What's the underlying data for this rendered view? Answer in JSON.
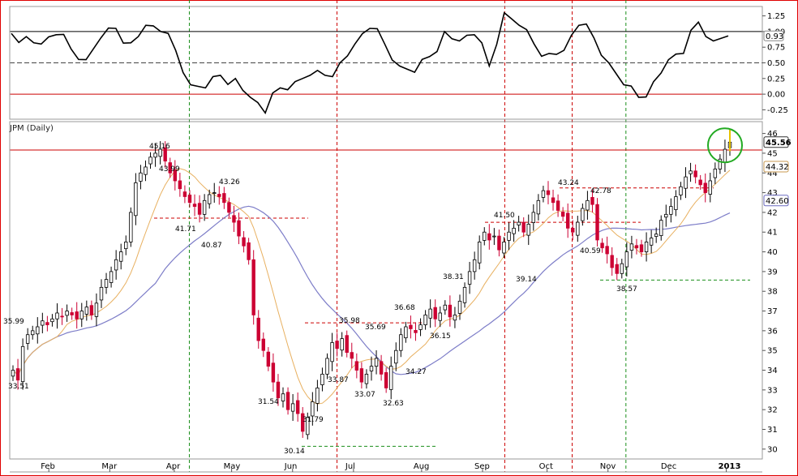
{
  "chart_data": [
    {
      "type": "line",
      "panel": "indicator",
      "ylim": [
        -0.4,
        1.4
      ],
      "yticks": [
        "1.25",
        "1.00",
        "0.75",
        "0.50",
        "0.25",
        "0.00",
        "-0.25"
      ],
      "reference_lines": {
        "solid_black": 1.0,
        "dashed": 0.5,
        "solid_red": 0.0
      },
      "last_value_label": "0.93",
      "x": [
        "Jan",
        "Jan",
        "Jan",
        "Feb",
        "Feb",
        "Feb",
        "Feb",
        "Mar",
        "Mar",
        "Mar",
        "Mar",
        "Apr",
        "Apr",
        "Apr",
        "Apr",
        "May",
        "May",
        "May",
        "May",
        "Jun",
        "Jun",
        "Jun",
        "Jun",
        "Jul",
        "Jul",
        "Jul",
        "Jul",
        "Aug",
        "Aug",
        "Aug",
        "Aug",
        "Sep",
        "Sep",
        "Sep",
        "Sep",
        "Oct",
        "Oct",
        "Oct",
        "Oct",
        "Nov",
        "Nov",
        "Nov",
        "Nov",
        "Dec",
        "Dec",
        "Dec",
        "Dec",
        "Jan",
        "Jan"
      ],
      "values": [
        0.97,
        0.92,
        0.8,
        0.95,
        0.72,
        0.55,
        0.9,
        1.05,
        0.82,
        1.1,
        1.0,
        0.7,
        0.15,
        0.1,
        0.3,
        0.25,
        -0.05,
        -0.3,
        0.1,
        0.2,
        0.3,
        0.3,
        0.5,
        0.8,
        1.05,
        0.8,
        0.45,
        0.35,
        0.6,
        1.0,
        0.85,
        0.95,
        0.45,
        1.3,
        1.1,
        0.8,
        0.65,
        0.7,
        1.1,
        0.9,
        0.5,
        0.15,
        -0.05,
        0.2,
        0.55,
        0.65,
        1.15,
        0.85,
        0.93
      ]
    },
    {
      "type": "candlestick",
      "panel": "price",
      "title": "JPM (Daily)",
      "ylim": [
        29.5,
        46.6
      ],
      "yticks": [
        30,
        31,
        32,
        33,
        34,
        35,
        36,
        37,
        38,
        39,
        40,
        41,
        42,
        43,
        44,
        45,
        46
      ],
      "x_tick_labels": [
        "Feb",
        "Mar",
        "Apr",
        "May",
        "Jun",
        "Jul",
        "Aug",
        "Sep",
        "Oct",
        "Nov",
        "Dec",
        "2013"
      ],
      "price_tags": [
        {
          "label": "45.56",
          "value": 45.56,
          "style": "black"
        },
        {
          "label": "44.32",
          "value": 44.32,
          "style": "tan"
        },
        {
          "label": "42.60",
          "value": 42.6,
          "style": "blue"
        }
      ],
      "price_labels": [
        "35.99",
        "33.51",
        "45.16",
        "43.99",
        "41.71",
        "40.87",
        "43.26",
        "31.54",
        "30.14",
        "31.79",
        "33.87",
        "35.98",
        "35.69",
        "33.07",
        "36.68",
        "32.63",
        "34.27",
        "36.15",
        "38.31",
        "41.50",
        "39.14",
        "43.24",
        "42.78",
        "40.59",
        "38.57"
      ],
      "horizontal_levels": [
        {
          "value": 45.16,
          "style": "solid-red"
        },
        {
          "value": 41.71,
          "style": "dashed-red"
        },
        {
          "value": 30.14,
          "style": "dashed-green"
        },
        {
          "value": 36.4,
          "style": "dashed-red"
        },
        {
          "value": 41.5,
          "style": "dashed-red"
        },
        {
          "value": 43.24,
          "style": "dashed-red"
        },
        {
          "value": 38.57,
          "style": "dashed-green"
        }
      ],
      "closes": [
        34.0,
        33.5,
        35.2,
        35.8,
        36.0,
        36.2,
        36.5,
        36.3,
        36.6,
        36.9,
        36.7,
        37.0,
        36.8,
        36.6,
        37.0,
        37.2,
        36.8,
        37.4,
        38.2,
        38.6,
        39.0,
        39.6,
        40.0,
        40.5,
        42.0,
        43.5,
        44.0,
        44.3,
        44.8,
        45.0,
        45.2,
        44.6,
        44.0,
        43.6,
        43.2,
        42.8,
        42.5,
        42.3,
        41.9,
        42.6,
        42.9,
        43.0,
        42.8,
        42.5,
        42.0,
        41.5,
        40.8,
        40.3,
        39.6,
        36.8,
        35.5,
        35.0,
        34.2,
        33.4,
        32.6,
        32.8,
        32.0,
        32.3,
        31.8,
        30.9,
        31.6,
        32.4,
        33.1,
        33.8,
        34.6,
        35.4,
        35.1,
        35.6,
        34.9,
        34.6,
        34.0,
        33.4,
        33.8,
        34.2,
        34.6,
        33.8,
        33.1,
        34.2,
        35.0,
        35.8,
        36.2,
        36.1,
        35.9,
        36.3,
        36.8,
        37.1,
        36.6,
        36.9,
        37.3,
        36.7,
        36.8,
        37.5,
        38.2,
        39.0,
        39.6,
        40.5,
        41.0,
        40.6,
        40.8,
        40.1,
        40.5,
        41.0,
        41.2,
        41.5,
        41.0,
        41.4,
        42.0,
        42.6,
        43.1,
        42.9,
        42.5,
        42.1,
        41.8,
        41.2,
        41.0,
        41.5,
        42.2,
        42.6,
        42.4,
        40.6,
        40.2,
        39.9,
        39.2,
        38.9,
        39.4,
        40.0,
        40.4,
        40.2,
        40.0,
        40.5,
        40.7,
        40.9,
        41.6,
        41.9,
        42.3,
        42.8,
        43.3,
        43.8,
        44.1,
        43.8,
        43.4,
        43.0,
        43.6,
        44.2,
        44.7,
        45.2,
        45.56
      ]
    }
  ]
}
